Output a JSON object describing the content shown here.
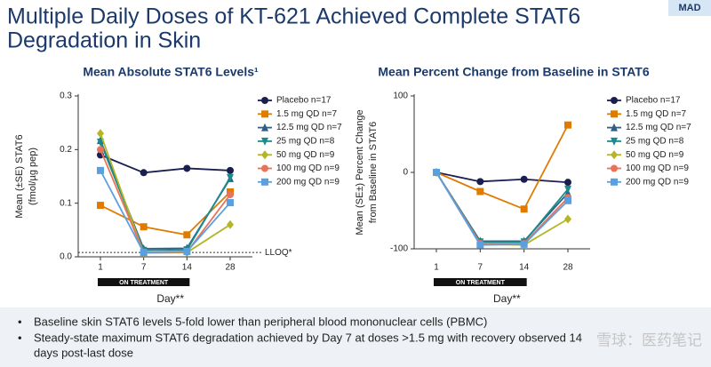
{
  "title": [
    "Multiple Daily Doses of KT-621 Achieved Complete STAT6",
    "Degradation in Skin"
  ],
  "tag": "MAD",
  "chart_data": [
    {
      "type": "line",
      "title": "Mean Absolute STAT6 Levels¹",
      "ylabel": [
        "Mean (±SE) STAT6",
        "(fmol/µg pep)"
      ],
      "xlabel": "Day**",
      "categories": [
        "1",
        "7",
        "14",
        "28"
      ],
      "annotation": "ON TREATMENT",
      "lloq": {
        "value": 0.008,
        "label": "LLOQ*"
      },
      "ylim": [
        0,
        0.3
      ],
      "yticks": [
        {
          "value": 0,
          "label": "0.0"
        },
        0.1,
        0.2,
        0.3
      ],
      "series": [
        {
          "name": "Placebo n=17",
          "color": "#1b1f4f",
          "marker": "circle",
          "values": [
            0.19,
            0.157,
            0.165,
            0.161
          ]
        },
        {
          "name": "1.5 mg QD n=7",
          "color": "#e07b00",
          "marker": "square",
          "values": [
            0.096,
            0.056,
            0.041,
            0.121
          ]
        },
        {
          "name": "12.5 mg QD n=7",
          "color": "#2e5f8a",
          "marker": "triangle",
          "values": [
            0.217,
            0.015,
            0.016,
            0.146
          ]
        },
        {
          "name": "25 mg QD n=8",
          "color": "#1a8a8a",
          "marker": "triangle-down",
          "values": [
            0.214,
            0.012,
            0.013,
            0.148
          ]
        },
        {
          "name": "50 mg QD n=9",
          "color": "#b5b528",
          "marker": "diamond",
          "values": [
            0.23,
            0.007,
            0.008,
            0.06
          ]
        },
        {
          "name": "100 mg QD n=9",
          "color": "#e8735a",
          "marker": "circle",
          "values": [
            0.2,
            0.008,
            0.009,
            0.116
          ]
        },
        {
          "name": "200 mg QD n=9",
          "color": "#5aa0e0",
          "marker": "square",
          "values": [
            0.161,
            0.008,
            0.01,
            0.101
          ]
        }
      ]
    },
    {
      "type": "line",
      "title": "Mean Percent Change from Baseline in STAT6",
      "ylabel": [
        "Mean (SE±) Percent Change",
        "from Baseline in STAT6"
      ],
      "xlabel": "Day**",
      "categories": [
        "1",
        "7",
        "14",
        "28"
      ],
      "annotation": "ON TREATMENT",
      "ylim": [
        -100,
        100
      ],
      "yticks": [
        -100,
        0,
        100
      ],
      "series": [
        {
          "name": "Placebo n=17",
          "color": "#1b1f4f",
          "marker": "circle",
          "values": [
            0,
            -12,
            -9,
            -13
          ]
        },
        {
          "name": "1.5 mg QD n=7",
          "color": "#e07b00",
          "marker": "square",
          "values": [
            0,
            -25,
            -48,
            62
          ]
        },
        {
          "name": "12.5 mg QD n=7",
          "color": "#2e5f8a",
          "marker": "triangle",
          "values": [
            0,
            -90,
            -90,
            -27
          ]
        },
        {
          "name": "25 mg QD n=8",
          "color": "#1a8a8a",
          "marker": "triangle-down",
          "values": [
            0,
            -91,
            -91,
            -22
          ]
        },
        {
          "name": "50 mg QD n=9",
          "color": "#b5b528",
          "marker": "diamond",
          "values": [
            0,
            -94,
            -95,
            -61
          ]
        },
        {
          "name": "100 mg QD n=9",
          "color": "#e8735a",
          "marker": "circle",
          "values": [
            0,
            -93,
            -93,
            -33
          ]
        },
        {
          "name": "200 mg QD n=9",
          "color": "#5aa0e0",
          "marker": "square",
          "values": [
            0,
            -95,
            -94,
            -37
          ]
        }
      ]
    }
  ],
  "bullets": [
    "Baseline skin STAT6 levels 5-fold lower than peripheral blood mononuclear cells (PBMC)",
    "Steady-state maximum STAT6 degradation achieved by Day 7 at doses >1.5 mg with recovery observed 14",
    "days post-last dose"
  ],
  "watermark": "雪球：医药笔记"
}
